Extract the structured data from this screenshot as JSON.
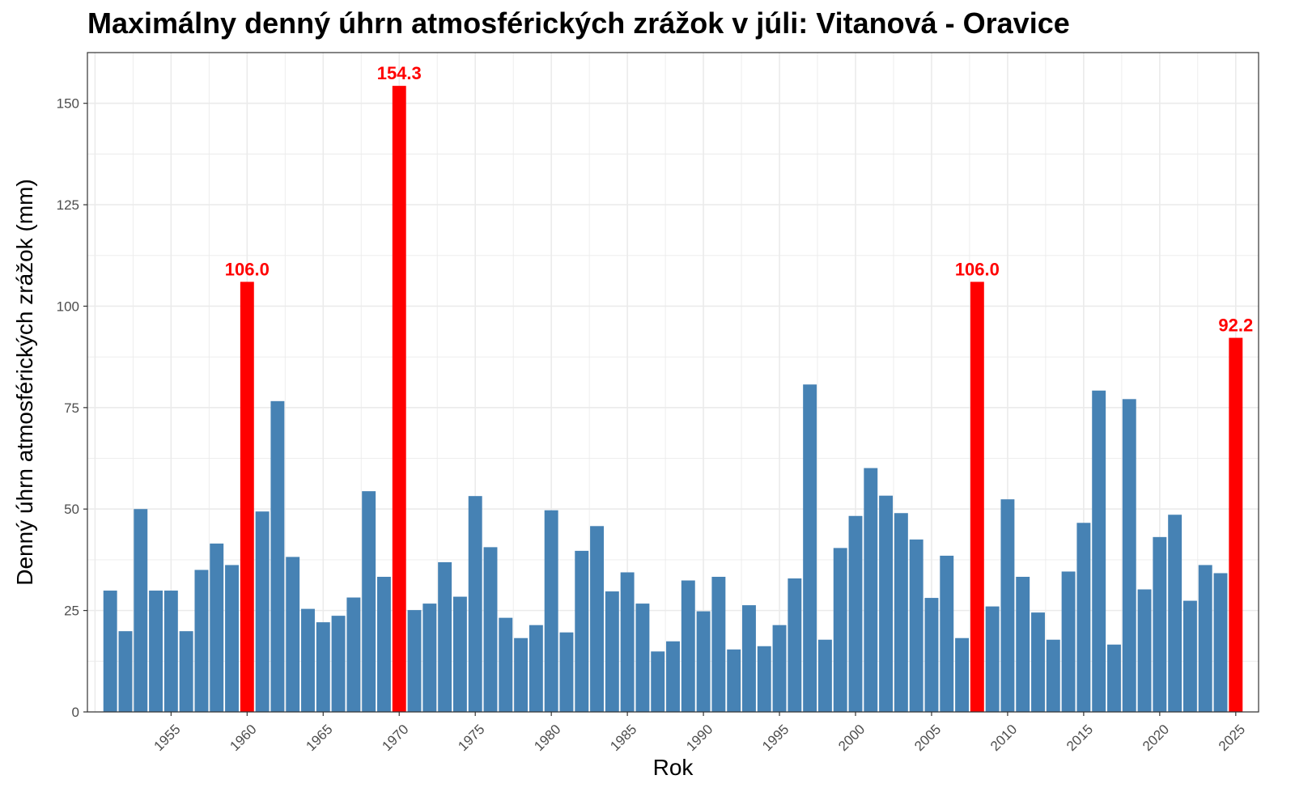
{
  "chart_data": {
    "type": "bar",
    "title": "Maximálny denný úhrn atmosférických zrážok v júli: Vitanová - Oravice",
    "xlabel": "Rok",
    "ylabel": "Denný úhrn atmosférických zrážok (mm)",
    "x": [
      1951,
      1952,
      1953,
      1954,
      1955,
      1956,
      1957,
      1958,
      1959,
      1960,
      1961,
      1962,
      1963,
      1964,
      1965,
      1966,
      1967,
      1968,
      1969,
      1970,
      1971,
      1972,
      1973,
      1974,
      1975,
      1976,
      1977,
      1978,
      1979,
      1980,
      1981,
      1982,
      1983,
      1984,
      1985,
      1986,
      1987,
      1988,
      1989,
      1990,
      1991,
      1992,
      1993,
      1994,
      1995,
      1996,
      1997,
      1998,
      1999,
      2000,
      2001,
      2002,
      2003,
      2004,
      2005,
      2006,
      2007,
      2008,
      2009,
      2010,
      2011,
      2012,
      2013,
      2014,
      2015,
      2016,
      2017,
      2018,
      2019,
      2020,
      2021,
      2022,
      2023,
      2024,
      2025
    ],
    "values": [
      29.9,
      19.9,
      50.0,
      29.9,
      29.9,
      19.9,
      35.0,
      41.5,
      36.2,
      106.0,
      49.4,
      76.6,
      38.2,
      25.4,
      22.1,
      23.7,
      28.2,
      54.4,
      33.3,
      154.3,
      25.1,
      26.7,
      36.9,
      28.4,
      53.2,
      40.6,
      23.2,
      18.2,
      21.4,
      49.7,
      19.6,
      39.7,
      45.8,
      29.7,
      34.4,
      26.7,
      14.9,
      17.4,
      32.4,
      24.8,
      33.3,
      15.4,
      26.3,
      16.2,
      21.4,
      32.9,
      80.7,
      17.8,
      40.4,
      48.3,
      60.1,
      53.3,
      49.0,
      42.5,
      28.1,
      38.5,
      18.2,
      106.0,
      26.0,
      52.4,
      33.3,
      24.5,
      17.8,
      34.6,
      46.6,
      79.2,
      16.6,
      77.1,
      30.2,
      43.1,
      48.6,
      27.4,
      36.2,
      34.2,
      92.2
    ],
    "highlighted": [
      {
        "x": 1960,
        "value": 106.0,
        "label": "106.0"
      },
      {
        "x": 1970,
        "value": 154.3,
        "label": "154.3"
      },
      {
        "x": 2008,
        "value": 106.0,
        "label": "106.0"
      },
      {
        "x": 2025,
        "value": 92.2,
        "label": "92.2"
      }
    ],
    "ylim": [
      0,
      162.5
    ],
    "xlim": [
      1949.5,
      2026.5
    ],
    "yticks": [
      0,
      25,
      50,
      75,
      100,
      125,
      150
    ],
    "yticklabels": [
      "0",
      "25",
      "50",
      "75",
      "100",
      "125",
      "150"
    ],
    "xticks": [
      1955,
      1960,
      1965,
      1970,
      1975,
      1980,
      1985,
      1990,
      1995,
      2000,
      2005,
      2010,
      2015,
      2020,
      2025
    ],
    "xticklabels": [
      "1955",
      "1960",
      "1965",
      "1970",
      "1975",
      "1980",
      "1985",
      "1990",
      "1995",
      "2000",
      "2005",
      "2010",
      "2015",
      "2020",
      "2025"
    ],
    "xticklabel_rotation": -45,
    "grid": true,
    "colors": {
      "bar": "#4682B4",
      "highlight": "#FF0000",
      "grid": "#EBEBEB",
      "panel_border": "#333333",
      "tick_text": "#4D4D4D"
    }
  }
}
